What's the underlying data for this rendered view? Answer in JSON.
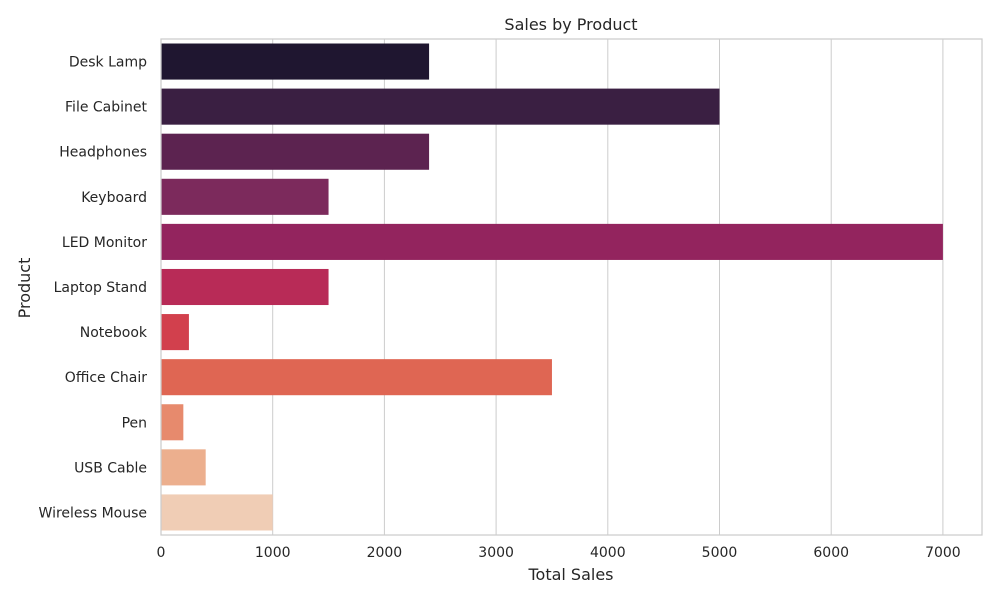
{
  "chart_data": {
    "type": "bar",
    "orientation": "horizontal",
    "title": "Sales by Product",
    "xlabel": "Total Sales",
    "ylabel": "Product",
    "categories": [
      "Desk Lamp",
      "File Cabinet",
      "Headphones",
      "Keyboard",
      "LED Monitor",
      "Laptop Stand",
      "Notebook",
      "Office Chair",
      "Pen",
      "USB Cable",
      "Wireless Mouse"
    ],
    "values": [
      2400,
      5000,
      2400,
      1500,
      7000,
      1500,
      250,
      3500,
      200,
      400,
      1000
    ],
    "colors": [
      "#1f1630",
      "#3a1f42",
      "#5c2350",
      "#7c2a5c",
      "#93245e",
      "#b82b57",
      "#d2404d",
      "#df6653",
      "#e78a6d",
      "#ecaf8e",
      "#f0cdb5"
    ],
    "xlim": [
      0,
      7350
    ],
    "xticks": [
      0,
      1000,
      2000,
      3000,
      4000,
      5000,
      6000,
      7000
    ],
    "grid": "vertical",
    "legend": "none"
  }
}
